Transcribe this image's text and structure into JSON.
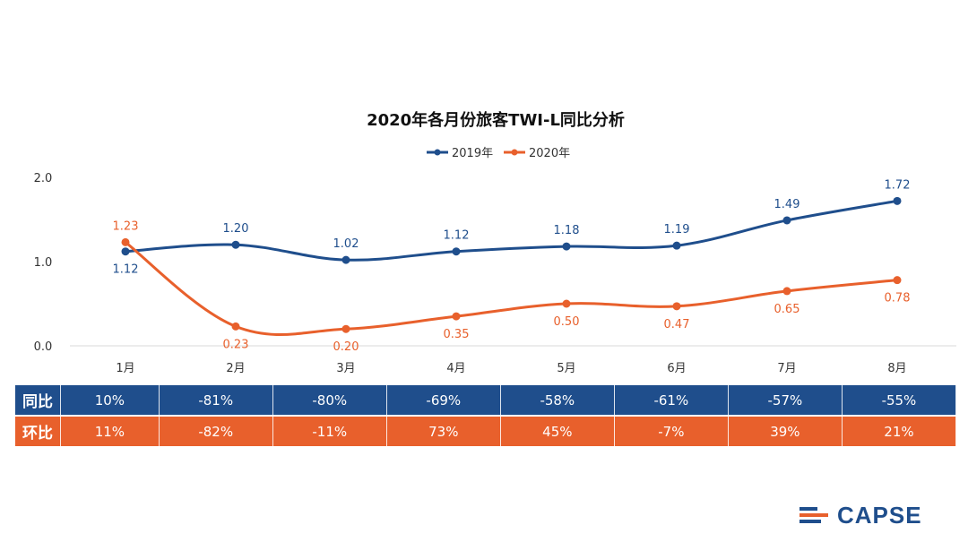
{
  "chart_data": {
    "type": "line",
    "title": "2020年各月份旅客TWI-L同比分析",
    "categories": [
      "1月",
      "2月",
      "3月",
      "4月",
      "5月",
      "6月",
      "7月",
      "8月"
    ],
    "series": [
      {
        "name": "2019年",
        "values": [
          1.12,
          1.2,
          1.02,
          1.12,
          1.18,
          1.19,
          1.49,
          1.72
        ],
        "color": "#1f4e8c"
      },
      {
        "name": "2020年",
        "values": [
          1.23,
          0.23,
          0.2,
          0.35,
          0.5,
          0.47,
          0.65,
          0.78
        ],
        "color": "#e8602c"
      }
    ],
    "ylim": [
      0,
      2.0
    ],
    "yticks": [
      "0.0",
      "1.0",
      "2.0"
    ],
    "legend_position": "top-center",
    "xlabel": "",
    "ylabel": ""
  },
  "table": {
    "rows": [
      {
        "label": "同比",
        "values": [
          "10%",
          "-81%",
          "-80%",
          "-69%",
          "-58%",
          "-61%",
          "-57%",
          "-55%"
        ]
      },
      {
        "label": "环比",
        "values": [
          "11%",
          "-82%",
          "-11%",
          "73%",
          "45%",
          "-7%",
          "39%",
          "21%"
        ]
      }
    ]
  },
  "logo": {
    "text": "CAPSE"
  }
}
